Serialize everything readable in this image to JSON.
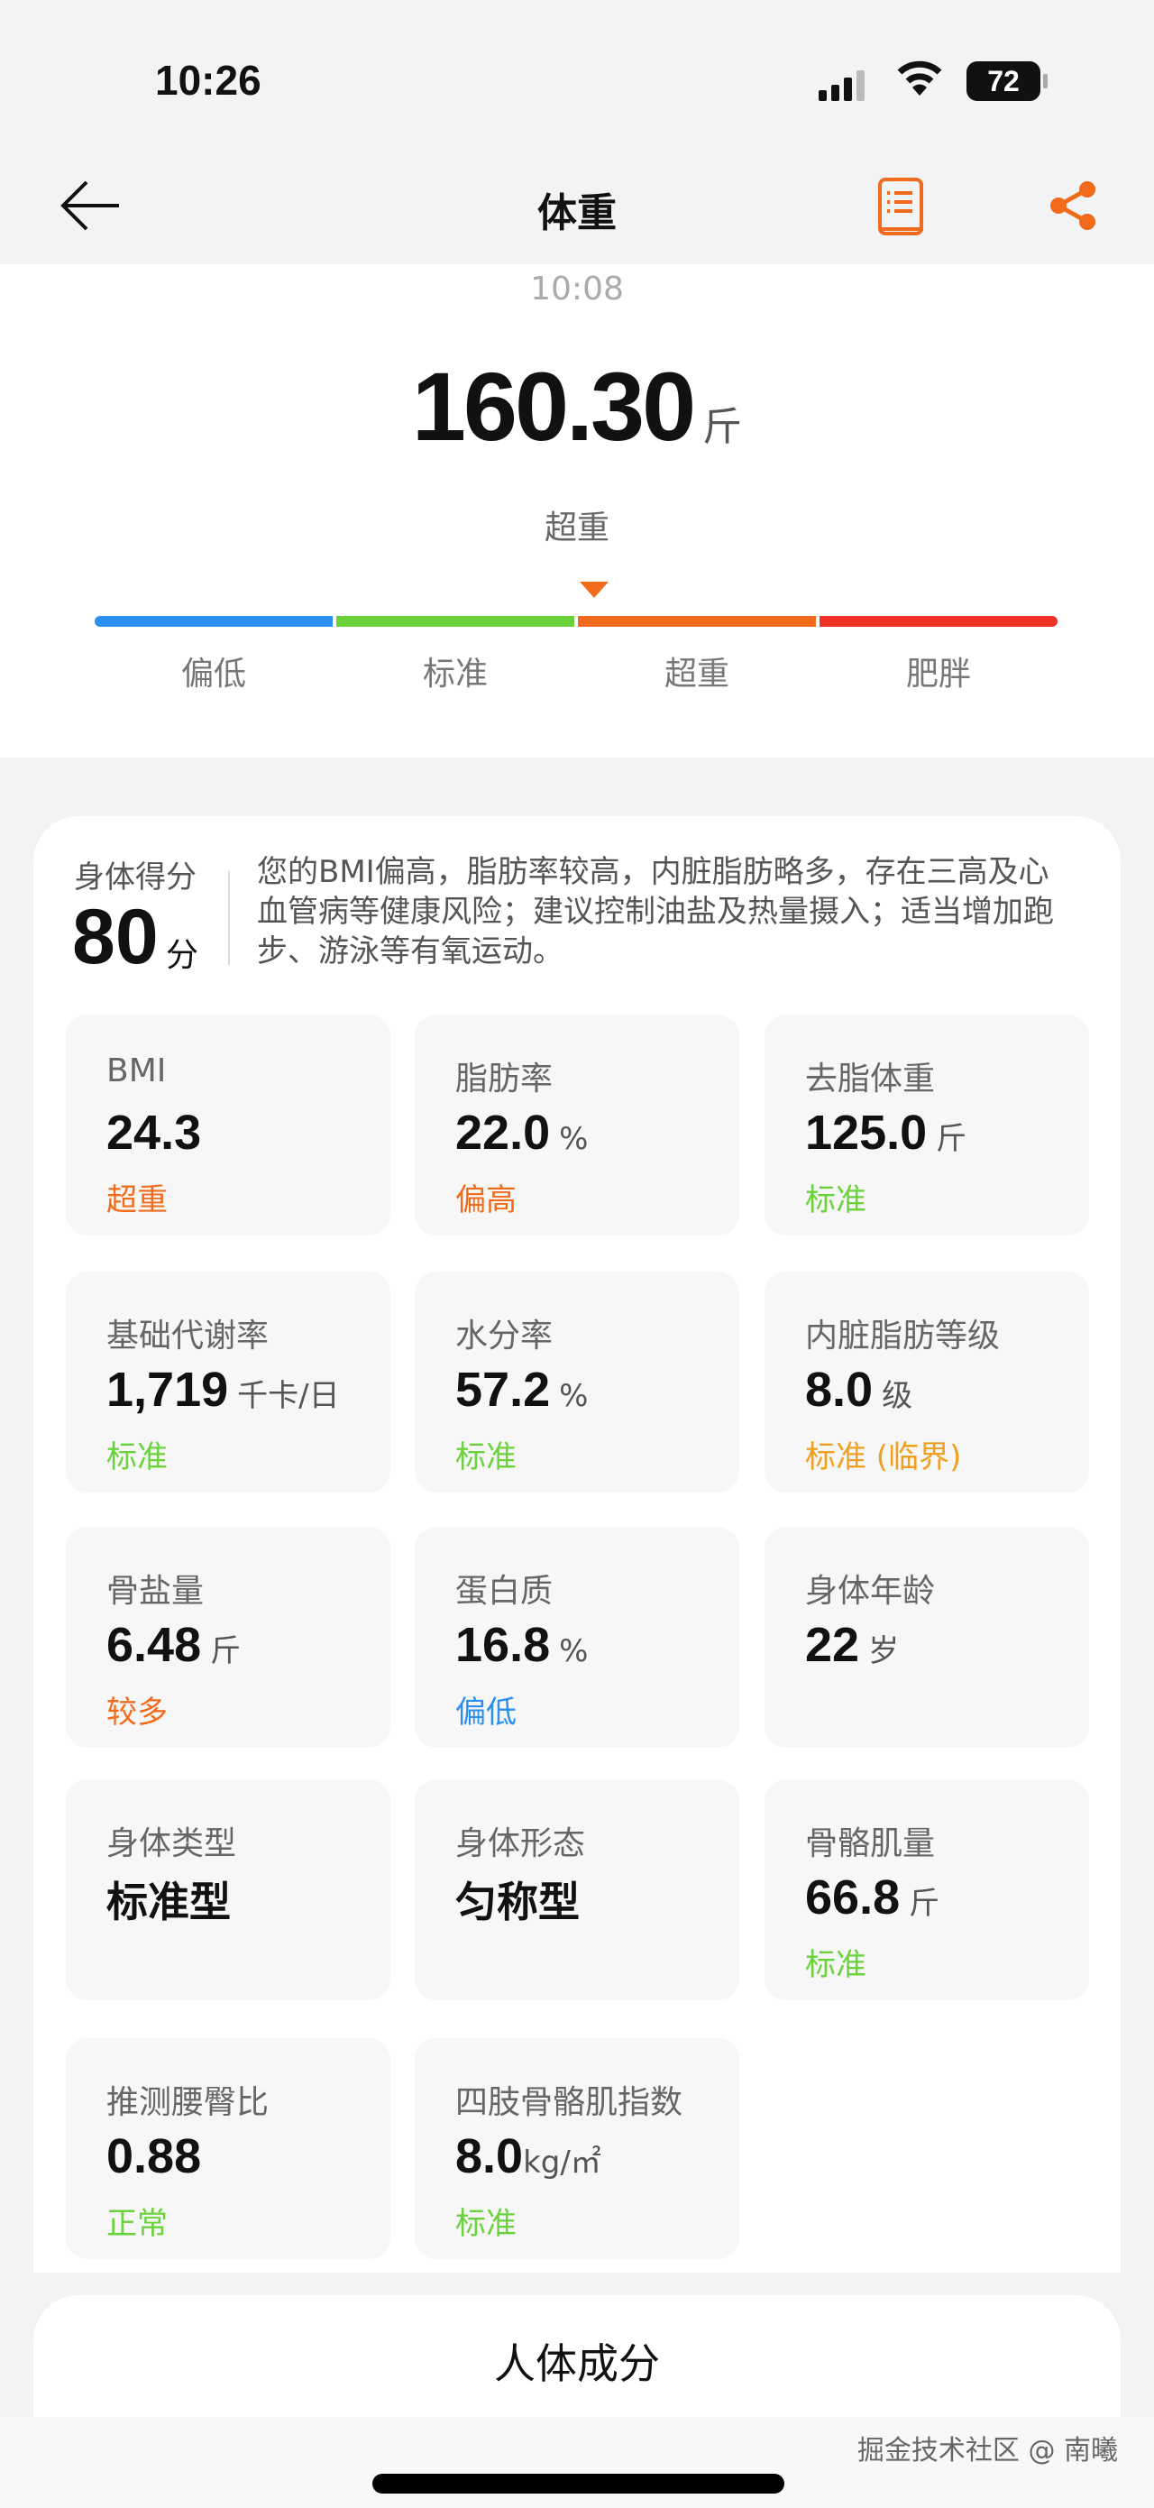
{
  "status_bar": {
    "time": "10:26",
    "battery": "72"
  },
  "nav": {
    "title": "体重",
    "back_icon": "arrow-left-icon",
    "report_icon": "report-list-icon",
    "share_icon": "share-icon",
    "accent": "#f26a1b"
  },
  "measurement": {
    "time": "10:08",
    "weight": "160.30",
    "unit": "斤",
    "status": "超重"
  },
  "scale": {
    "segments": [
      {
        "label": "偏低",
        "color": "#2a8ff0"
      },
      {
        "label": "标准",
        "color": "#6ad33c"
      },
      {
        "label": "超重",
        "color": "#f26a1b"
      },
      {
        "label": "肥胖",
        "color": "#ef3326"
      }
    ],
    "marker_segment": "超重"
  },
  "score": {
    "label": "身体得分",
    "value": "80",
    "unit": "分",
    "advice": "您的BMI偏高，脂肪率较高，内脏脂肪略多，存在三高及心血管病等健康风险；建议控制油盐及热量摄入；适当增加跑步、游泳等有氧运动。"
  },
  "metrics": [
    {
      "title": "BMI",
      "value": "24.3",
      "unit": "",
      "status": "超重",
      "color": "#f26a1b"
    },
    {
      "title": "脂肪率",
      "value": "22.0",
      "unit": "%",
      "status": "偏高",
      "color": "#f26a1b"
    },
    {
      "title": "去脂体重",
      "value": "125.0",
      "unit": "斤",
      "status": "标准",
      "color": "#6ad33c"
    },
    {
      "title": "基础代谢率",
      "value": "1,719",
      "unit": "千卡/日",
      "status": "标准",
      "color": "#6ad33c"
    },
    {
      "title": "水分率",
      "value": "57.2",
      "unit": "%",
      "status": "标准",
      "color": "#6ad33c"
    },
    {
      "title": "内脏脂肪等级",
      "value": "8.0",
      "unit": "级",
      "status": "标准 (临界)",
      "color": "#f0a020"
    },
    {
      "title": "骨盐量",
      "value": "6.48",
      "unit": "斤",
      "status": "较多",
      "color": "#f26a1b"
    },
    {
      "title": "蛋白质",
      "value": "16.8",
      "unit": "%",
      "status": "偏低",
      "color": "#2a8ff0"
    },
    {
      "title": "身体年龄",
      "value": "22",
      "unit": "岁",
      "status": "",
      "color": ""
    },
    {
      "title": "身体类型",
      "text": "标准型",
      "status": "",
      "color": ""
    },
    {
      "title": "身体形态",
      "text": "匀称型",
      "status": "",
      "color": ""
    },
    {
      "title": "骨骼肌量",
      "value": "66.8",
      "unit": "斤",
      "status": "标准",
      "color": "#6ad33c"
    },
    {
      "title": "推测腰臀比",
      "value": "0.88",
      "unit": "",
      "status": "正常",
      "color": "#6ad33c"
    },
    {
      "title": "四肢骨骼肌指数",
      "value": "8.0",
      "unit": "kg/㎡",
      "status": "标准",
      "color": "#6ad33c"
    }
  ],
  "section2": {
    "title": "人体成分"
  },
  "watermark": "掘金技术社区 @ 南曦"
}
